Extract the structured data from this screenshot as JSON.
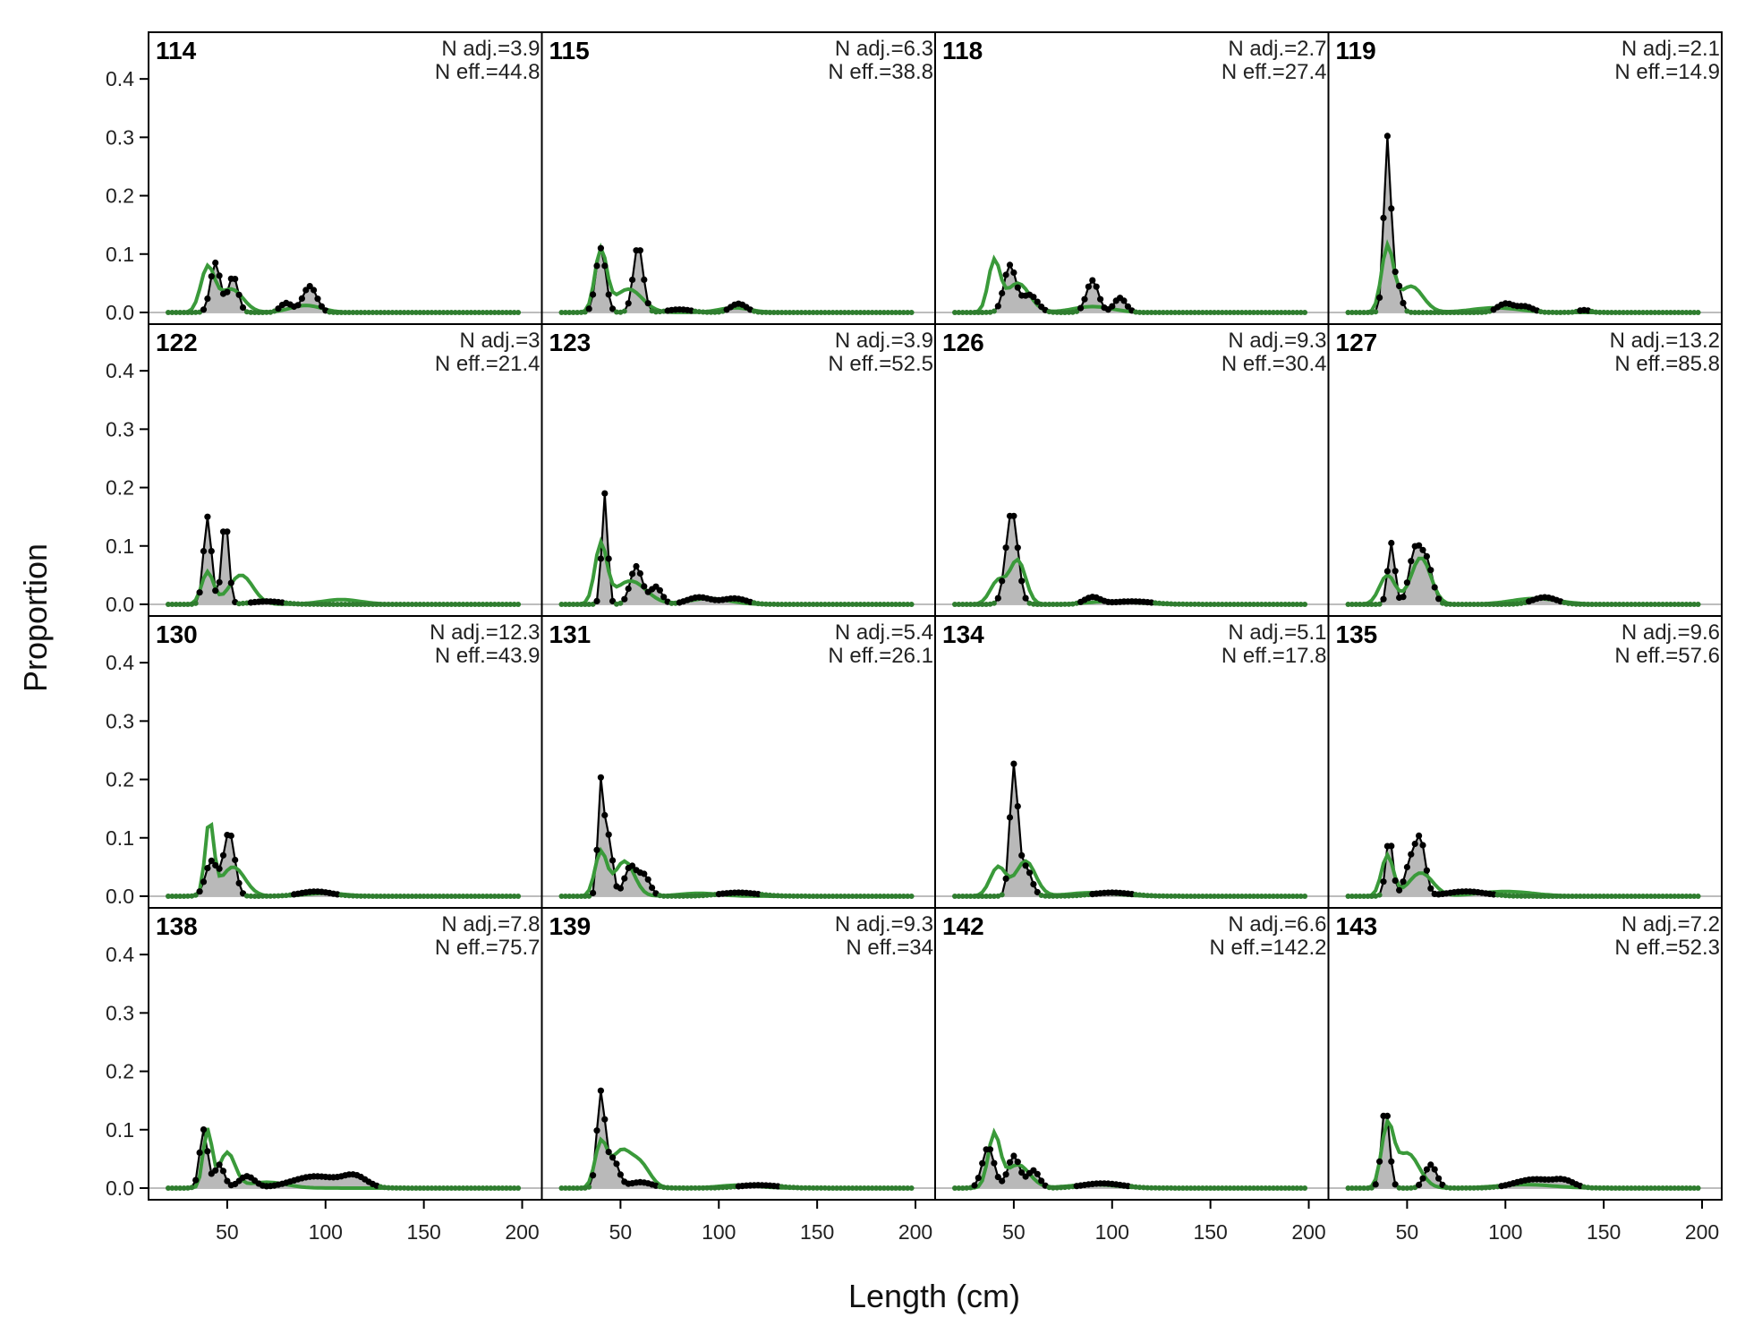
{
  "chart_data": {
    "type": "area",
    "xlabel": "Length (cm)",
    "ylabel": "Proportion",
    "xlim": [
      10,
      210
    ],
    "ylim": [
      -0.02,
      0.48
    ],
    "x_ticks": [
      50,
      100,
      150,
      200
    ],
    "y_ticks": [
      0.0,
      0.1,
      0.2,
      0.3,
      0.4
    ],
    "y_tick_labels": [
      "0.0",
      "0.1",
      "0.2",
      "0.3",
      "0.4"
    ],
    "x_tick_labels": [
      "50",
      "100",
      "150",
      "200"
    ],
    "grid": false,
    "bin_range": [
      20,
      198,
      2
    ],
    "colors": {
      "observed_fill": "#b9b9b9",
      "observed_line": "#000000",
      "expected_line": "#3a9a3a",
      "zero_line": "#bdbdbd"
    },
    "panels": [
      {
        "label": "114",
        "n_adj": "N adj.=3.9",
        "n_eff": "N eff.=44.8",
        "obs_peaks": [
          [
            44,
            0.085,
            2.5
          ],
          [
            53,
            0.062,
            2.5
          ],
          [
            80,
            0.016,
            3
          ],
          [
            92,
            0.045,
            3.5
          ]
        ],
        "exp_peaks": [
          [
            40,
            0.075,
            3.5
          ],
          [
            52,
            0.04,
            6
          ],
          [
            90,
            0.012,
            8
          ]
        ]
      },
      {
        "label": "122",
        "n_adj": "N adj.=3",
        "n_eff": "N eff.=21.4",
        "obs_peaks": [
          [
            40,
            0.15,
            2
          ],
          [
            49,
            0.145,
            1.8
          ],
          [
            70,
            0.005,
            8
          ]
        ],
        "exp_peaks": [
          [
            40,
            0.055,
            3
          ],
          [
            57,
            0.05,
            6
          ],
          [
            108,
            0.008,
            10
          ]
        ]
      },
      {
        "label": "130",
        "n_adj": "N adj.=12.3",
        "n_eff": "N eff.=43.9",
        "obs_peaks": [
          [
            42,
            0.06,
            3
          ],
          [
            51,
            0.11,
            2.8
          ],
          [
            95,
            0.008,
            8
          ]
        ],
        "exp_peaks": [
          [
            41,
            0.125,
            2.2
          ],
          [
            53,
            0.05,
            6
          ],
          [
            100,
            0.005,
            10
          ]
        ]
      },
      {
        "label": "138",
        "n_adj": "N adj.=7.8",
        "n_eff": "N eff.=75.7",
        "obs_peaks": [
          [
            38,
            0.1,
            2
          ],
          [
            46,
            0.04,
            2.5
          ],
          [
            60,
            0.02,
            4
          ],
          [
            95,
            0.02,
            12
          ],
          [
            115,
            0.018,
            6
          ]
        ],
        "exp_peaks": [
          [
            40,
            0.1,
            2.2
          ],
          [
            50,
            0.06,
            4
          ],
          [
            70,
            0.01,
            10
          ]
        ]
      },
      {
        "label": "115",
        "n_adj": "N adj.=6.3",
        "n_eff": "N eff.=38.8",
        "obs_peaks": [
          [
            40,
            0.11,
            2.5
          ],
          [
            59,
            0.115,
            2.5
          ],
          [
            80,
            0.005,
            6
          ],
          [
            110,
            0.015,
            4
          ]
        ],
        "exp_peaks": [
          [
            40,
            0.105,
            3
          ],
          [
            54,
            0.04,
            7
          ],
          [
            108,
            0.008,
            8
          ]
        ]
      },
      {
        "label": "123",
        "n_adj": "N adj.=3.9",
        "n_eff": "N eff.=52.5",
        "obs_peaks": [
          [
            42,
            0.19,
            1.5
          ],
          [
            58,
            0.065,
            3
          ],
          [
            68,
            0.03,
            3
          ],
          [
            90,
            0.012,
            6
          ],
          [
            108,
            0.01,
            6
          ]
        ],
        "exp_peaks": [
          [
            40,
            0.1,
            3
          ],
          [
            55,
            0.04,
            8
          ],
          [
            95,
            0.01,
            10
          ]
        ]
      },
      {
        "label": "131",
        "n_adj": "N adj.=5.4",
        "n_eff": "N eff.=26.1",
        "obs_peaks": [
          [
            40,
            0.19,
            1.5
          ],
          [
            44,
            0.1,
            2
          ],
          [
            55,
            0.05,
            3
          ],
          [
            62,
            0.035,
            3
          ],
          [
            110,
            0.006,
            10
          ]
        ],
        "exp_peaks": [
          [
            40,
            0.075,
            3
          ],
          [
            52,
            0.06,
            5
          ],
          [
            90,
            0.005,
            10
          ]
        ]
      },
      {
        "label": "139",
        "n_adj": "N adj.=9.3",
        "n_eff": "N eff.=34",
        "obs_peaks": [
          [
            40,
            0.16,
            2
          ],
          [
            46,
            0.05,
            3
          ],
          [
            60,
            0.01,
            6
          ],
          [
            120,
            0.005,
            10
          ]
        ],
        "exp_peaks": [
          [
            40,
            0.075,
            3
          ],
          [
            50,
            0.06,
            5
          ],
          [
            60,
            0.04,
            5
          ],
          [
            110,
            0.005,
            10
          ]
        ]
      },
      {
        "label": "118",
        "n_adj": "N adj.=2.7",
        "n_eff": "N eff.=27.4",
        "obs_peaks": [
          [
            48,
            0.08,
            3
          ],
          [
            58,
            0.03,
            4
          ],
          [
            90,
            0.055,
            3
          ],
          [
            104,
            0.025,
            3
          ]
        ],
        "exp_peaks": [
          [
            40,
            0.085,
            3
          ],
          [
            52,
            0.05,
            6
          ],
          [
            90,
            0.01,
            10
          ]
        ]
      },
      {
        "label": "126",
        "n_adj": "N adj.=9.3",
        "n_eff": "N eff.=30.4",
        "obs_peaks": [
          [
            49,
            0.16,
            3
          ],
          [
            90,
            0.012,
            4
          ],
          [
            110,
            0.005,
            10
          ]
        ],
        "exp_peaks": [
          [
            42,
            0.04,
            4
          ],
          [
            52,
            0.075,
            4
          ],
          [
            100,
            0.005,
            12
          ]
        ]
      },
      {
        "label": "134",
        "n_adj": "N adj.=5.1",
        "n_eff": "N eff.=17.8",
        "obs_peaks": [
          [
            50,
            0.22,
            2
          ],
          [
            56,
            0.05,
            3
          ],
          [
            100,
            0.006,
            10
          ]
        ],
        "exp_peaks": [
          [
            42,
            0.05,
            4
          ],
          [
            56,
            0.06,
            5
          ],
          [
            90,
            0.006,
            12
          ]
        ]
      },
      {
        "label": "142",
        "n_adj": "N adj.=6.6",
        "n_eff": "N eff.=142.2",
        "obs_peaks": [
          [
            37,
            0.07,
            3
          ],
          [
            50,
            0.055,
            3
          ],
          [
            60,
            0.03,
            3
          ],
          [
            95,
            0.008,
            10
          ]
        ],
        "exp_peaks": [
          [
            40,
            0.09,
            3
          ],
          [
            52,
            0.04,
            6
          ],
          [
            90,
            0.006,
            12
          ]
        ]
      },
      {
        "label": "119",
        "n_adj": "N adj.=2.1",
        "n_eff": "N eff.=14.9",
        "obs_peaks": [
          [
            40,
            0.3,
            1.8
          ],
          [
            45,
            0.05,
            2
          ],
          [
            100,
            0.015,
            4
          ],
          [
            110,
            0.01,
            4
          ],
          [
            140,
            0.004,
            3
          ]
        ],
        "exp_peaks": [
          [
            40,
            0.11,
            3
          ],
          [
            52,
            0.045,
            6
          ],
          [
            95,
            0.008,
            12
          ]
        ]
      },
      {
        "label": "127",
        "n_adj": "N adj.=13.2",
        "n_eff": "N eff.=85.8",
        "obs_peaks": [
          [
            42,
            0.105,
            1.8
          ],
          [
            54,
            0.09,
            3
          ],
          [
            60,
            0.07,
            3
          ],
          [
            120,
            0.012,
            6
          ]
        ],
        "exp_peaks": [
          [
            40,
            0.05,
            4
          ],
          [
            57,
            0.08,
            5
          ],
          [
            115,
            0.01,
            12
          ]
        ]
      },
      {
        "label": "135",
        "n_adj": "N adj.=9.6",
        "n_eff": "N eff.=57.6",
        "obs_peaks": [
          [
            41,
            0.1,
            1.8
          ],
          [
            52,
            0.06,
            3
          ],
          [
            57,
            0.085,
            2.5
          ],
          [
            80,
            0.008,
            10
          ]
        ],
        "exp_peaks": [
          [
            40,
            0.07,
            3
          ],
          [
            57,
            0.04,
            6
          ],
          [
            100,
            0.008,
            14
          ]
        ]
      },
      {
        "label": "143",
        "n_adj": "N adj.=7.2",
        "n_eff": "N eff.=52.3",
        "obs_peaks": [
          [
            39,
            0.14,
            2
          ],
          [
            62,
            0.04,
            3
          ],
          [
            115,
            0.015,
            10
          ],
          [
            130,
            0.01,
            5
          ]
        ],
        "exp_peaks": [
          [
            40,
            0.1,
            3
          ],
          [
            50,
            0.06,
            6
          ],
          [
            110,
            0.006,
            14
          ]
        ]
      }
    ]
  }
}
